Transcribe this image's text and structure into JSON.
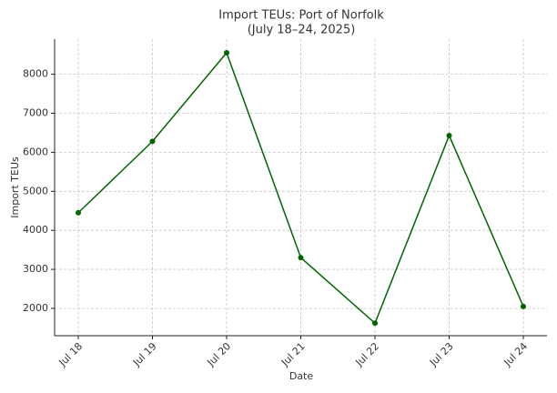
{
  "chart_data": {
    "type": "line",
    "title": "Import TEUs: Port of Norfolk",
    "subtitle": "(July 18–24, 2025)",
    "x_label": "Date",
    "y_label": "Import TEUs",
    "categories": [
      "Jul 18",
      "Jul 19",
      "Jul 20",
      "Jul 21",
      "Jul 22",
      "Jul 23",
      "Jul 24"
    ],
    "series": [
      {
        "name": "Import TEUs",
        "color": "#006400",
        "values": [
          4450,
          6280,
          8550,
          3300,
          1620,
          6430,
          2050
        ]
      }
    ],
    "ylim": [
      1300,
      8900
    ],
    "yticks": [
      2000,
      3000,
      4000,
      5000,
      6000,
      7000,
      8000
    ],
    "grid": true
  }
}
